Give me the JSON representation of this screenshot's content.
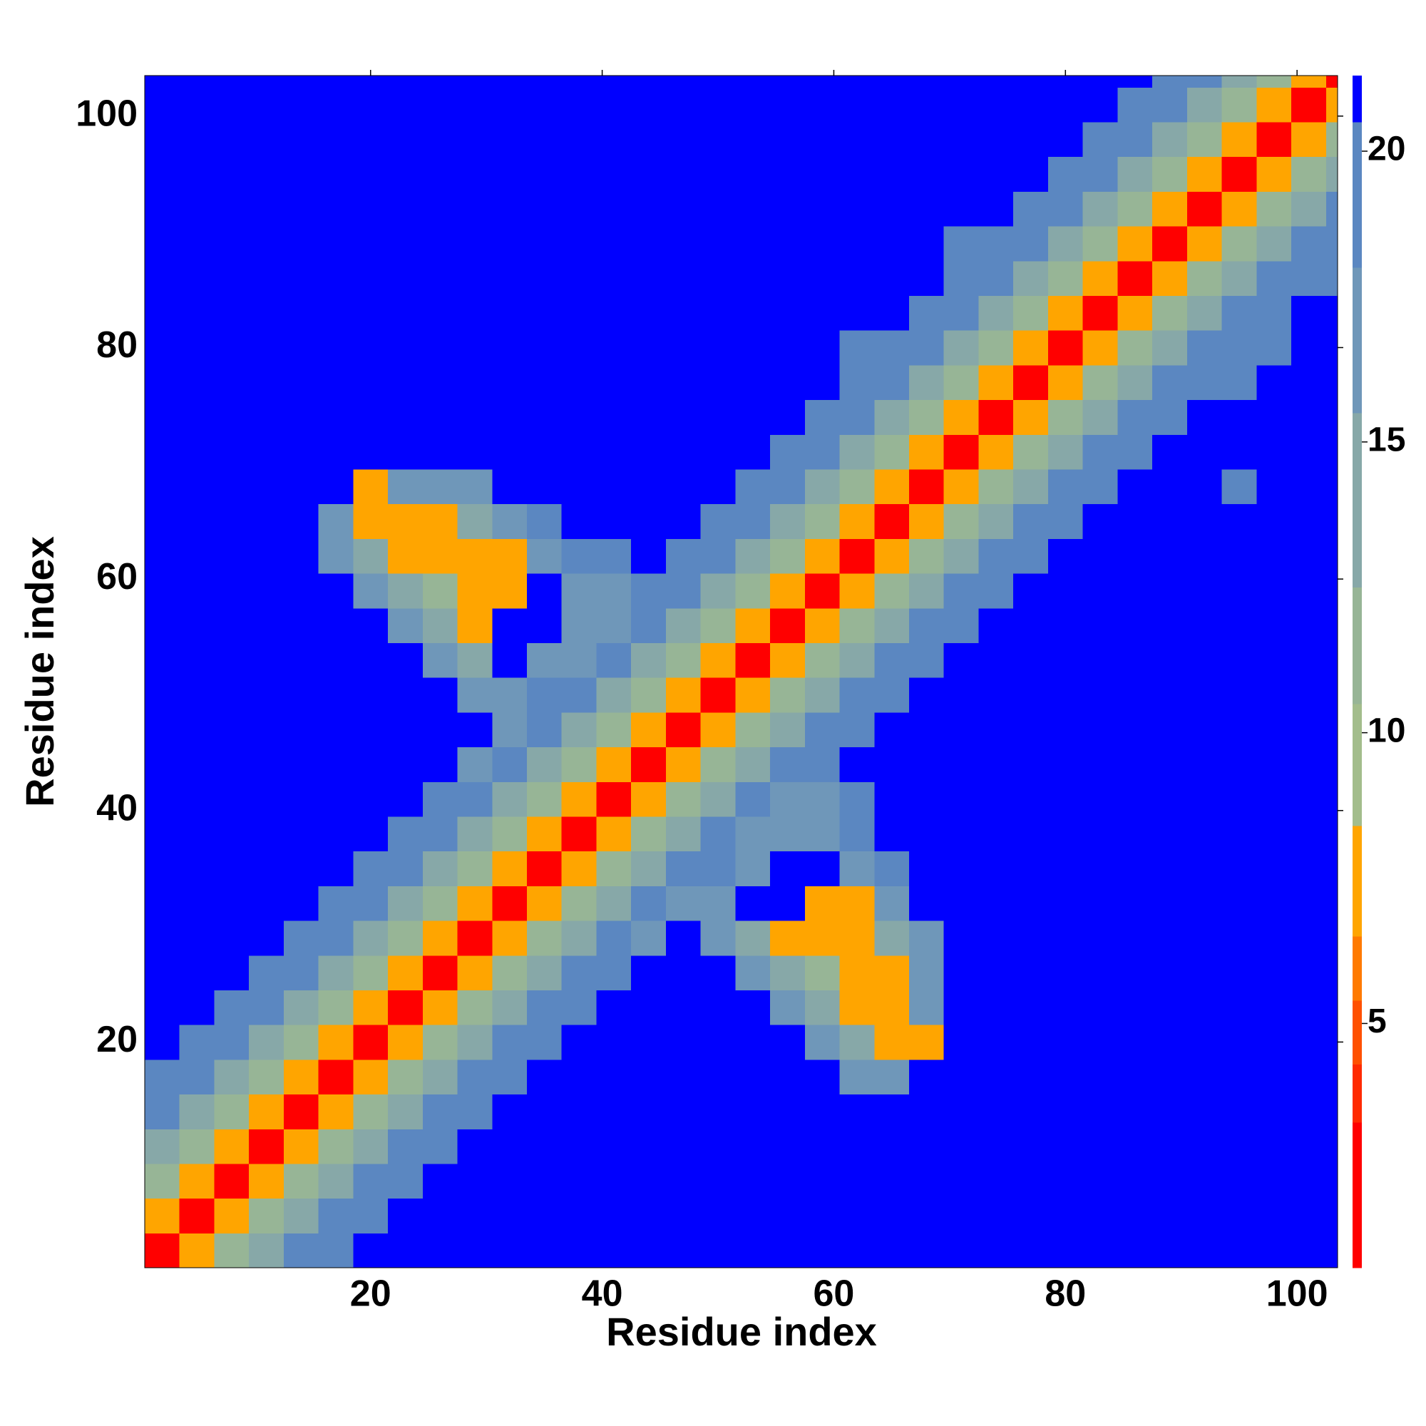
{
  "chart_data": {
    "type": "heatmap",
    "xlabel": "Residue index",
    "ylabel": "Residue index",
    "x": [
      2,
      5,
      8,
      11,
      14,
      17,
      20,
      23,
      26,
      29,
      32,
      35,
      38,
      41,
      44,
      47,
      50,
      53,
      56,
      59,
      62,
      65,
      68,
      71,
      74,
      77,
      80,
      83,
      86,
      89,
      92,
      95,
      98,
      101,
      104
    ],
    "y": [
      2,
      5,
      8,
      11,
      14,
      17,
      20,
      23,
      26,
      29,
      32,
      35,
      38,
      41,
      44,
      47,
      50,
      53,
      56,
      59,
      62,
      65,
      68,
      71,
      74,
      77,
      80,
      83,
      86,
      89,
      92,
      95,
      98,
      101,
      104
    ],
    "xlim": [
      0.5,
      103.5
    ],
    "ylim": [
      0.5,
      103.5
    ],
    "xticks": [
      20,
      40,
      60,
      80,
      100
    ],
    "yticks": [
      20,
      40,
      60,
      80,
      100
    ],
    "colorbar": {
      "lim": [
        0.8,
        21.3
      ],
      "ticks": [
        5,
        10,
        15,
        20
      ],
      "bounds": [
        0.8,
        3.3,
        4.3,
        5.4,
        6.5,
        8.4,
        10.5,
        12.5,
        15.5,
        18,
        20.5,
        21.3
      ],
      "colors": [
        "#ff0000",
        "#ff2a00",
        "#ff5000",
        "#ff7a00",
        "#ffa500",
        "#a3bd8c",
        "#97b596",
        "#87a8a8",
        "#6f97b9",
        "#5b87c1",
        "#0000ff"
      ]
    },
    "z": [
      [
        2,
        7,
        11,
        15,
        18,
        19,
        21,
        21,
        21,
        21,
        21,
        21,
        21,
        21,
        21,
        21,
        21,
        21,
        21,
        21,
        21,
        21,
        21,
        21,
        21,
        21,
        21,
        21,
        21,
        21,
        21,
        21,
        21,
        21,
        21
      ],
      [
        7,
        2,
        7,
        11,
        15,
        18,
        19,
        21,
        21,
        21,
        21,
        21,
        21,
        21,
        21,
        21,
        21,
        21,
        21,
        21,
        21,
        21,
        21,
        21,
        21,
        21,
        21,
        21,
        21,
        21,
        21,
        21,
        21,
        21,
        21
      ],
      [
        11,
        7,
        2,
        7,
        11,
        15,
        18,
        19,
        21,
        21,
        21,
        21,
        21,
        21,
        21,
        21,
        21,
        21,
        21,
        21,
        21,
        21,
        21,
        21,
        21,
        21,
        21,
        21,
        21,
        21,
        21,
        21,
        21,
        21,
        21
      ],
      [
        15,
        11,
        7,
        2,
        7,
        11,
        15,
        18,
        19,
        21,
        21,
        21,
        21,
        21,
        21,
        21,
        21,
        21,
        21,
        21,
        21,
        21,
        21,
        21,
        21,
        21,
        21,
        21,
        21,
        21,
        21,
        21,
        21,
        21,
        21
      ],
      [
        18,
        15,
        11,
        7,
        2,
        7,
        11,
        15,
        18,
        19,
        21,
        21,
        21,
        21,
        21,
        21,
        21,
        21,
        21,
        21,
        21,
        21,
        21,
        21,
        21,
        21,
        21,
        21,
        21,
        21,
        21,
        21,
        21,
        21,
        21
      ],
      [
        19,
        18,
        15,
        11,
        7,
        2,
        7,
        11,
        15,
        18,
        19,
        21,
        21,
        21,
        21,
        21,
        21,
        21,
        21,
        21,
        17,
        17,
        21,
        21,
        21,
        21,
        21,
        21,
        21,
        21,
        21,
        21,
        21,
        21,
        21
      ],
      [
        21,
        19,
        18,
        15,
        11,
        7,
        2,
        7,
        11,
        15,
        18,
        19,
        21,
        21,
        21,
        21,
        21,
        21,
        21,
        17,
        15,
        7,
        7,
        21,
        21,
        21,
        21,
        21,
        21,
        21,
        21,
        21,
        21,
        21,
        21
      ],
      [
        21,
        21,
        19,
        18,
        15,
        11,
        7,
        2,
        7,
        11,
        15,
        18,
        19,
        21,
        21,
        21,
        21,
        21,
        17,
        15,
        8,
        8,
        16,
        21,
        21,
        21,
        21,
        21,
        21,
        21,
        21,
        21,
        21,
        21,
        21
      ],
      [
        21,
        21,
        21,
        19,
        18,
        15,
        11,
        7,
        2,
        7,
        11,
        15,
        18,
        19,
        21,
        21,
        21,
        17,
        14,
        12,
        7,
        7,
        17,
        21,
        21,
        21,
        21,
        21,
        21,
        21,
        21,
        21,
        21,
        21,
        21
      ],
      [
        21,
        21,
        21,
        21,
        19,
        18,
        15,
        11,
        7,
        2,
        7,
        11,
        15,
        18,
        17,
        21,
        17,
        15,
        8,
        7,
        8,
        15,
        17,
        21,
        21,
        21,
        21,
        21,
        21,
        21,
        21,
        21,
        21,
        21,
        21
      ],
      [
        21,
        21,
        21,
        21,
        21,
        19,
        18,
        15,
        11,
        7,
        2,
        7,
        11,
        15,
        18,
        17,
        17,
        21,
        21,
        8,
        8,
        17,
        21,
        21,
        21,
        21,
        21,
        21,
        21,
        21,
        21,
        21,
        21,
        21,
        21
      ],
      [
        21,
        21,
        21,
        21,
        21,
        21,
        19,
        18,
        15,
        11,
        7,
        2,
        7,
        11,
        15,
        18,
        19,
        17,
        21,
        21,
        17,
        18,
        21,
        21,
        21,
        21,
        21,
        21,
        21,
        21,
        21,
        21,
        21,
        21,
        21
      ],
      [
        21,
        21,
        21,
        21,
        21,
        21,
        21,
        19,
        18,
        15,
        11,
        7,
        2,
        7,
        11,
        15,
        18,
        17,
        17,
        17,
        18,
        21,
        21,
        21,
        21,
        21,
        21,
        21,
        21,
        21,
        21,
        21,
        21,
        21,
        21
      ],
      [
        21,
        21,
        21,
        21,
        21,
        21,
        21,
        21,
        19,
        18,
        15,
        11,
        7,
        2,
        7,
        11,
        15,
        18,
        17,
        17,
        18,
        21,
        21,
        21,
        21,
        21,
        21,
        21,
        21,
        21,
        21,
        21,
        21,
        21,
        21
      ],
      [
        21,
        21,
        21,
        21,
        21,
        21,
        21,
        21,
        21,
        17,
        18,
        15,
        11,
        7,
        2,
        7,
        11,
        15,
        18,
        19,
        21,
        21,
        21,
        21,
        21,
        21,
        21,
        21,
        21,
        21,
        21,
        21,
        21,
        21,
        21
      ],
      [
        21,
        21,
        21,
        21,
        21,
        21,
        21,
        21,
        21,
        21,
        17,
        18,
        15,
        11,
        7,
        2,
        7,
        11,
        15,
        18,
        19,
        21,
        21,
        21,
        21,
        21,
        21,
        21,
        21,
        21,
        21,
        21,
        21,
        21,
        21
      ],
      [
        21,
        21,
        21,
        21,
        21,
        21,
        21,
        21,
        21,
        17,
        17,
        19,
        18,
        15,
        11,
        7,
        2,
        7,
        11,
        15,
        18,
        19,
        21,
        21,
        21,
        21,
        21,
        21,
        21,
        21,
        21,
        21,
        21,
        21,
        21
      ],
      [
        21,
        21,
        21,
        21,
        21,
        21,
        21,
        21,
        17,
        15,
        21,
        17,
        17,
        18,
        15,
        11,
        7,
        2,
        7,
        11,
        15,
        18,
        19,
        21,
        21,
        21,
        21,
        21,
        21,
        21,
        21,
        21,
        21,
        21,
        21
      ],
      [
        21,
        21,
        21,
        21,
        21,
        21,
        21,
        17,
        14,
        8,
        21,
        21,
        17,
        17,
        18,
        15,
        11,
        7,
        2,
        7,
        11,
        15,
        18,
        19,
        21,
        21,
        21,
        21,
        21,
        21,
        21,
        21,
        21,
        21,
        21
      ],
      [
        21,
        21,
        21,
        21,
        21,
        21,
        17,
        15,
        12,
        7,
        8,
        21,
        17,
        17,
        19,
        18,
        15,
        11,
        7,
        2,
        7,
        11,
        15,
        18,
        19,
        21,
        21,
        21,
        21,
        21,
        21,
        21,
        21,
        21,
        21
      ],
      [
        21,
        21,
        21,
        21,
        21,
        17,
        15,
        8,
        7,
        8,
        8,
        17,
        18,
        18,
        21,
        19,
        18,
        15,
        11,
        7,
        2,
        7,
        11,
        15,
        18,
        19,
        21,
        21,
        21,
        21,
        21,
        21,
        21,
        21,
        21
      ],
      [
        21,
        21,
        21,
        21,
        21,
        17,
        7,
        8,
        7,
        15,
        17,
        18,
        21,
        21,
        21,
        21,
        19,
        18,
        15,
        11,
        7,
        2,
        7,
        11,
        15,
        18,
        19,
        21,
        21,
        21,
        21,
        21,
        21,
        21,
        21
      ],
      [
        21,
        21,
        21,
        21,
        21,
        21,
        7,
        16,
        17,
        17,
        21,
        21,
        21,
        21,
        21,
        21,
        21,
        19,
        18,
        15,
        11,
        7,
        2,
        7,
        11,
        15,
        18,
        19,
        21,
        21,
        21,
        18,
        21,
        21,
        21
      ],
      [
        21,
        21,
        21,
        21,
        21,
        21,
        21,
        21,
        21,
        21,
        21,
        21,
        21,
        21,
        21,
        21,
        21,
        21,
        19,
        18,
        15,
        11,
        7,
        2,
        7,
        11,
        15,
        18,
        19,
        21,
        21,
        21,
        21,
        21,
        21
      ],
      [
        21,
        21,
        21,
        21,
        21,
        21,
        21,
        21,
        21,
        21,
        21,
        21,
        21,
        21,
        21,
        21,
        21,
        21,
        21,
        19,
        18,
        15,
        11,
        7,
        2,
        7,
        11,
        15,
        18,
        19,
        21,
        21,
        21,
        21,
        21
      ],
      [
        21,
        21,
        21,
        21,
        21,
        21,
        21,
        21,
        21,
        21,
        21,
        21,
        21,
        21,
        21,
        21,
        21,
        21,
        21,
        21,
        19,
        18,
        15,
        11,
        7,
        2,
        7,
        11,
        15,
        18,
        19,
        18,
        21,
        21,
        21
      ],
      [
        21,
        21,
        21,
        21,
        21,
        21,
        21,
        21,
        21,
        21,
        21,
        21,
        21,
        21,
        21,
        21,
        21,
        21,
        21,
        21,
        18,
        19,
        18,
        15,
        11,
        7,
        2,
        7,
        11,
        15,
        18,
        19,
        18,
        21,
        21
      ],
      [
        21,
        21,
        21,
        21,
        21,
        21,
        21,
        21,
        21,
        21,
        21,
        21,
        21,
        21,
        21,
        21,
        21,
        21,
        21,
        21,
        21,
        21,
        19,
        18,
        15,
        11,
        7,
        2,
        7,
        11,
        15,
        18,
        19,
        21,
        21
      ],
      [
        21,
        21,
        21,
        21,
        21,
        21,
        21,
        21,
        21,
        21,
        21,
        21,
        21,
        21,
        21,
        21,
        21,
        21,
        21,
        21,
        21,
        21,
        21,
        19,
        18,
        15,
        11,
        7,
        2,
        7,
        11,
        15,
        18,
        19,
        18
      ],
      [
        21,
        21,
        21,
        21,
        21,
        21,
        21,
        21,
        21,
        21,
        21,
        21,
        21,
        21,
        21,
        21,
        21,
        21,
        21,
        21,
        21,
        21,
        21,
        18,
        19,
        18,
        15,
        11,
        7,
        2,
        7,
        11,
        15,
        18,
        19
      ],
      [
        21,
        21,
        21,
        21,
        21,
        21,
        21,
        21,
        21,
        21,
        21,
        21,
        21,
        21,
        21,
        21,
        21,
        21,
        21,
        21,
        21,
        21,
        21,
        21,
        21,
        19,
        18,
        15,
        11,
        7,
        2,
        7,
        11,
        15,
        18
      ],
      [
        21,
        21,
        21,
        21,
        21,
        21,
        21,
        21,
        21,
        21,
        21,
        21,
        21,
        21,
        21,
        21,
        21,
        21,
        21,
        21,
        21,
        21,
        21,
        21,
        21,
        21,
        19,
        18,
        15,
        11,
        7,
        2,
        7,
        11,
        15
      ],
      [
        21,
        21,
        21,
        21,
        21,
        21,
        21,
        21,
        21,
        21,
        21,
        21,
        21,
        21,
        21,
        21,
        21,
        21,
        21,
        21,
        21,
        21,
        21,
        21,
        21,
        21,
        21,
        19,
        18,
        15,
        11,
        7,
        2,
        7,
        11
      ],
      [
        21,
        21,
        21,
        21,
        21,
        21,
        21,
        21,
        21,
        21,
        21,
        21,
        21,
        21,
        21,
        21,
        21,
        21,
        21,
        21,
        21,
        21,
        21,
        21,
        21,
        21,
        21,
        21,
        19,
        18,
        15,
        11,
        7,
        2,
        7
      ],
      [
        21,
        21,
        21,
        21,
        21,
        21,
        21,
        21,
        21,
        21,
        21,
        21,
        21,
        21,
        21,
        21,
        21,
        21,
        21,
        21,
        21,
        21,
        21,
        21,
        21,
        21,
        21,
        21,
        21,
        19,
        18,
        15,
        11,
        7,
        2
      ]
    ]
  }
}
